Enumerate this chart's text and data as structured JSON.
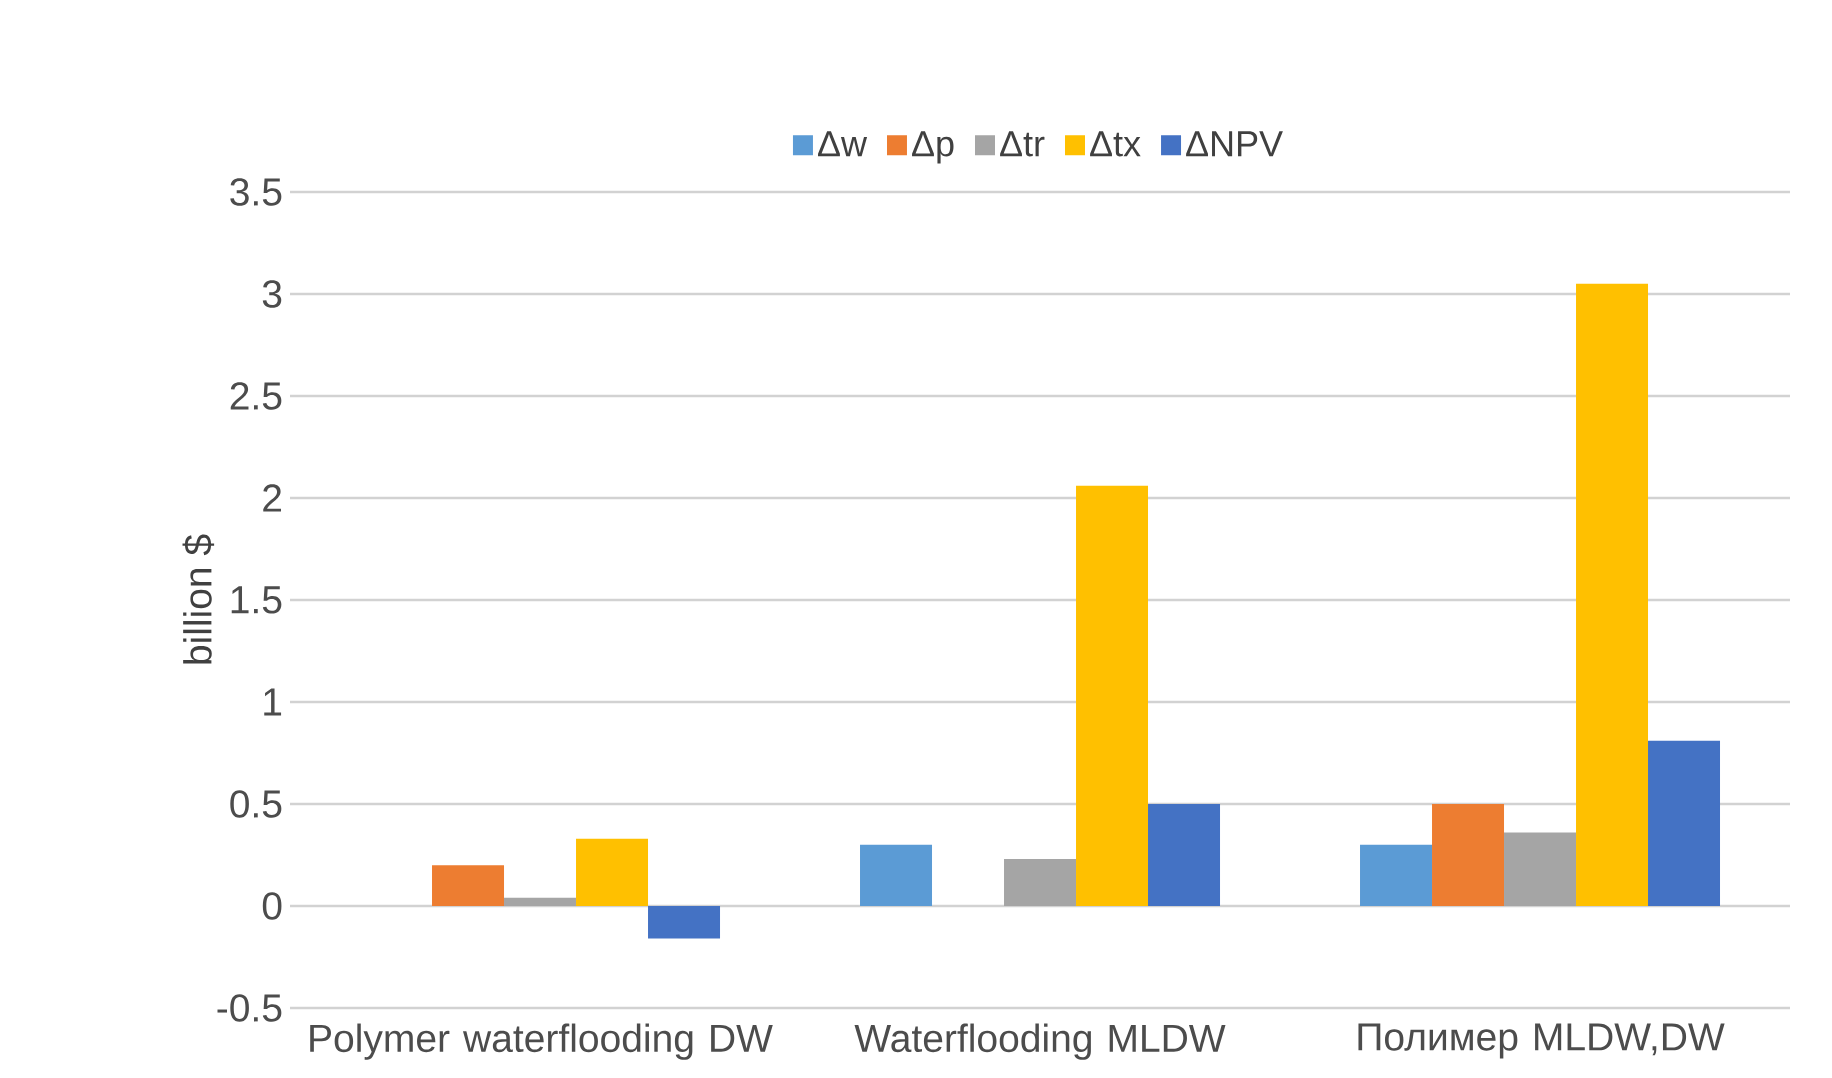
{
  "chart_data": {
    "type": "bar",
    "ylabel": "billion $",
    "categories": [
      "Polymer waterflooding DW",
      "Waterflooding MLDW",
      "Полимер MLDW,DW"
    ],
    "series": [
      {
        "name": "Δw",
        "color": "#5b9bd5",
        "values": [
          0,
          0.3,
          0.3
        ]
      },
      {
        "name": "Δp",
        "color": "#ed7d31",
        "values": [
          0.2,
          0,
          0.5
        ]
      },
      {
        "name": "Δtr",
        "color": "#a5a5a5",
        "values": [
          0.04,
          0.23,
          0.36
        ]
      },
      {
        "name": "Δtx",
        "color": "#ffc000",
        "values": [
          0.33,
          2.06,
          3.05
        ]
      },
      {
        "name": "ΔNPV",
        "color": "#4472c4",
        "values": [
          -0.16,
          0.5,
          0.81
        ]
      }
    ],
    "ylim": [
      -0.5,
      3.5
    ],
    "yticks": [
      -0.5,
      0,
      0.5,
      1,
      1.5,
      2,
      2.5,
      3,
      3.5
    ],
    "grid": "y",
    "legend": "top"
  }
}
